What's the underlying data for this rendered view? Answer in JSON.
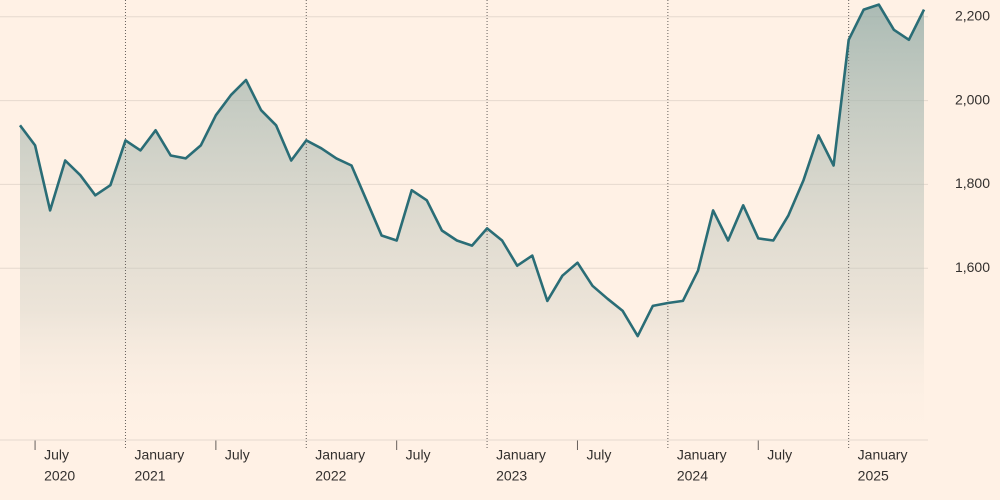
{
  "chart_data": {
    "type": "line",
    "x": [
      "2020-06",
      "2020-07",
      "2020-08",
      "2020-09",
      "2020-10",
      "2020-11",
      "2020-12",
      "2021-01",
      "2021-02",
      "2021-03",
      "2021-04",
      "2021-05",
      "2021-06",
      "2021-07",
      "2021-08",
      "2021-09",
      "2021-10",
      "2021-11",
      "2021-12",
      "2022-01",
      "2022-02",
      "2022-03",
      "2022-04",
      "2022-05",
      "2022-06",
      "2022-07",
      "2022-08",
      "2022-09",
      "2022-10",
      "2022-11",
      "2022-12",
      "2023-01",
      "2023-02",
      "2023-03",
      "2023-04",
      "2023-05",
      "2023-06",
      "2023-07",
      "2023-08",
      "2023-09",
      "2023-10",
      "2023-11",
      "2023-12",
      "2024-01",
      "2024-02",
      "2024-03",
      "2024-04",
      "2024-05",
      "2024-06",
      "2024-07",
      "2024-08",
      "2024-09",
      "2024-10",
      "2024-11",
      "2024-12",
      "2025-01",
      "2025-02",
      "2025-03",
      "2025-04",
      "2025-05",
      "2025-06"
    ],
    "series": [
      {
        "color": "#2a6d76",
        "values": [
          1941,
          1893,
          1738,
          1857,
          1822,
          1774,
          1798,
          1905,
          1881,
          1929,
          1869,
          1862,
          1893,
          1965,
          2013,
          2049,
          1977,
          1941,
          1857,
          1905,
          1886,
          1862,
          1845,
          1762,
          1678,
          1666,
          1786,
          1762,
          1690,
          1666,
          1654,
          1695,
          1666,
          1606,
          1630,
          1522,
          1582,
          1613,
          1558,
          1527,
          1498,
          1438,
          1510,
          1517,
          1522,
          1594,
          1738,
          1666,
          1750,
          1671,
          1666,
          1726,
          1810,
          1917,
          1845,
          2145,
          2217,
          2229,
          2169,
          2145,
          2217
        ]
      }
    ],
    "xlim": [
      "2020-06",
      "2025-06"
    ],
    "xticks": [
      {
        "value": "2020-07",
        "label": "July",
        "year": "2020"
      },
      {
        "value": "2021-01",
        "label": "January",
        "year": "2021"
      },
      {
        "value": "2021-07",
        "label": "July"
      },
      {
        "value": "2022-01",
        "label": "January",
        "year": "2022"
      },
      {
        "value": "2022-07",
        "label": "July"
      },
      {
        "value": "2023-01",
        "label": "January",
        "year": "2023"
      },
      {
        "value": "2023-07",
        "label": "July"
      },
      {
        "value": "2024-01",
        "label": "January",
        "year": "2024"
      },
      {
        "value": "2024-07",
        "label": "July"
      },
      {
        "value": "2025-01",
        "label": "January",
        "year": "2025"
      }
    ],
    "ylim": [
      1190,
      2240
    ],
    "yticks": [
      {
        "value": 1600,
        "label": "1,600"
      },
      {
        "value": 1800,
        "label": "1,800"
      },
      {
        "value": 2000,
        "label": "2,000"
      },
      {
        "value": 2200,
        "label": "2,200"
      }
    ],
    "grid": true
  }
}
